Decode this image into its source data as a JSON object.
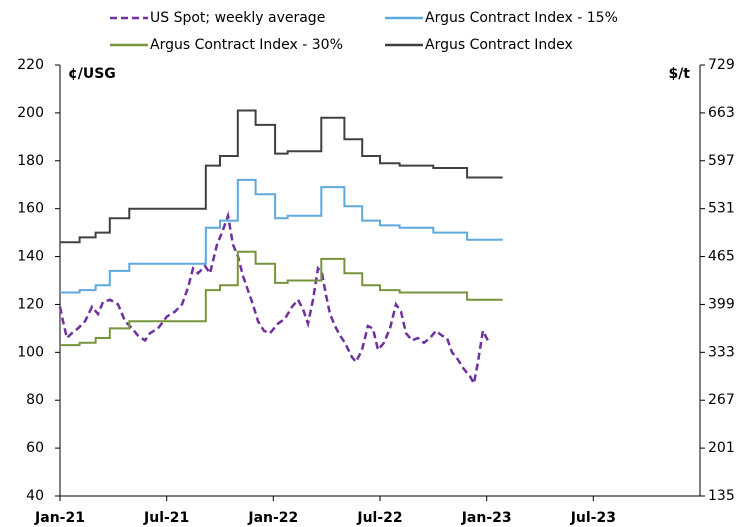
{
  "chart_data": {
    "type": "line",
    "y_label": "¢/USG",
    "y2_label": "$/t",
    "xlim": [
      0,
      36
    ],
    "xticks": [
      {
        "value": 0,
        "label": "Jan-21"
      },
      {
        "value": 6,
        "label": "Jul-21"
      },
      {
        "value": 12,
        "label": "Jan-22"
      },
      {
        "value": 18,
        "label": "Jul-22"
      },
      {
        "value": 24,
        "label": "Jan-23"
      },
      {
        "value": 30,
        "label": "Jul-23"
      }
    ],
    "ylim": [
      40,
      220
    ],
    "yticks": [
      40,
      60,
      80,
      100,
      120,
      140,
      160,
      180,
      200,
      220
    ],
    "y2lim": [
      135,
      729
    ],
    "y2ticks": [
      135,
      201,
      267,
      333,
      399,
      465,
      531,
      597,
      663,
      729
    ],
    "series": [
      {
        "name": "US Spot; weekly average",
        "color": "#7030a0",
        "dashed": true,
        "x": [
          0,
          0.17,
          0.39,
          0.67,
          1.01,
          1.41,
          1.8,
          2.14,
          2.42,
          2.81,
          3.26,
          3.66,
          4.05,
          4.39,
          4.78,
          5.06,
          5.51,
          6.02,
          6.47,
          6.86,
          7.2,
          7.48,
          7.76,
          8.16,
          8.44,
          8.83,
          9.11,
          9.45,
          9.73,
          10.01,
          10.29,
          10.57,
          10.85,
          11.14,
          11.47,
          11.81,
          12.26,
          12.65,
          13.05,
          13.39,
          13.67,
          13.95,
          14.23,
          14.51,
          14.74,
          14.96,
          15.19,
          15.47,
          15.75,
          16.03,
          16.42,
          16.65,
          16.99,
          17.32,
          17.6,
          17.89,
          18.22,
          18.56,
          18.9,
          19.18,
          19.46,
          19.8,
          20.13,
          20.47,
          20.81,
          21.15,
          21.48,
          21.77,
          22.05,
          22.38,
          22.72,
          23.06,
          23.28,
          23.51,
          23.79,
          24.13
        ],
        "values": [
          119,
          113,
          106,
          108,
          110,
          113,
          119,
          116,
          121,
          122,
          120,
          113,
          110,
          107,
          105,
          108,
          110,
          115,
          117,
          120,
          127,
          135,
          133,
          136,
          133,
          145,
          150,
          157,
          145,
          140,
          132,
          126,
          120,
          113,
          109,
          108,
          112,
          114,
          119,
          122,
          118,
          112,
          122,
          135,
          133,
          124,
          116,
          111,
          107,
          104,
          98,
          96,
          101,
          111,
          110,
          101,
          104,
          110,
          120,
          117,
          108,
          105,
          106,
          104,
          106,
          109,
          107,
          106,
          100,
          97,
          93,
          90,
          87,
          96,
          109,
          104
        ]
      },
      {
        "name": "Argus Contract Index - 15%",
        "color": "#5fa8dc",
        "x": [
          0,
          1.1,
          1.1,
          2,
          2,
          2.8,
          2.8,
          3.9,
          3.9,
          8.2,
          8.2,
          9,
          9,
          10,
          10,
          11,
          11,
          12.1,
          12.1,
          12.8,
          12.8,
          14.7,
          14.7,
          16,
          16,
          17,
          17,
          18,
          18,
          19.1,
          19.1,
          21,
          21,
          22.9,
          22.9,
          24.9
        ],
        "values": [
          125,
          125,
          126,
          126,
          128,
          128,
          134,
          134,
          137,
          137,
          152,
          152,
          155,
          155,
          172,
          172,
          166,
          166,
          156,
          156,
          157,
          157,
          169,
          169,
          161,
          161,
          155,
          155,
          153,
          153,
          152,
          152,
          150,
          150,
          147,
          147
        ]
      },
      {
        "name": "Argus Contract Index - 30%",
        "color": "#77933c",
        "x": [
          0,
          1.1,
          1.1,
          2,
          2,
          2.8,
          2.8,
          3.9,
          3.9,
          8.2,
          8.2,
          9,
          9,
          10,
          10,
          11,
          11,
          12.1,
          12.1,
          12.8,
          12.8,
          14.7,
          14.7,
          16,
          16,
          17,
          17,
          18,
          18,
          19.1,
          19.1,
          21,
          21,
          22.9,
          22.9,
          24.9
        ],
        "values": [
          103,
          103,
          104,
          104,
          106,
          106,
          110,
          110,
          113,
          113,
          126,
          126,
          128,
          128,
          142,
          142,
          137,
          137,
          129,
          129,
          130,
          130,
          139,
          139,
          133,
          133,
          128,
          128,
          126,
          126,
          125,
          125,
          125,
          125,
          122,
          122
        ]
      },
      {
        "name": "Argus Contract Index",
        "color": "#404040",
        "x": [
          0,
          1.1,
          1.1,
          2,
          2,
          2.8,
          2.8,
          3.9,
          3.9,
          8.2,
          8.2,
          9,
          9,
          10,
          10,
          11,
          11,
          12.1,
          12.1,
          12.8,
          12.8,
          14.7,
          14.7,
          16,
          16,
          17,
          17,
          18,
          18,
          19.1,
          19.1,
          21,
          21,
          22.9,
          22.9,
          24.9
        ],
        "values": [
          146,
          146,
          148,
          148,
          150,
          150,
          156,
          156,
          160,
          160,
          178,
          178,
          182,
          182,
          201,
          201,
          195,
          195,
          183,
          183,
          184,
          184,
          198,
          198,
          189,
          189,
          182,
          182,
          179,
          179,
          178,
          178,
          177,
          177,
          173,
          173
        ]
      }
    ]
  }
}
